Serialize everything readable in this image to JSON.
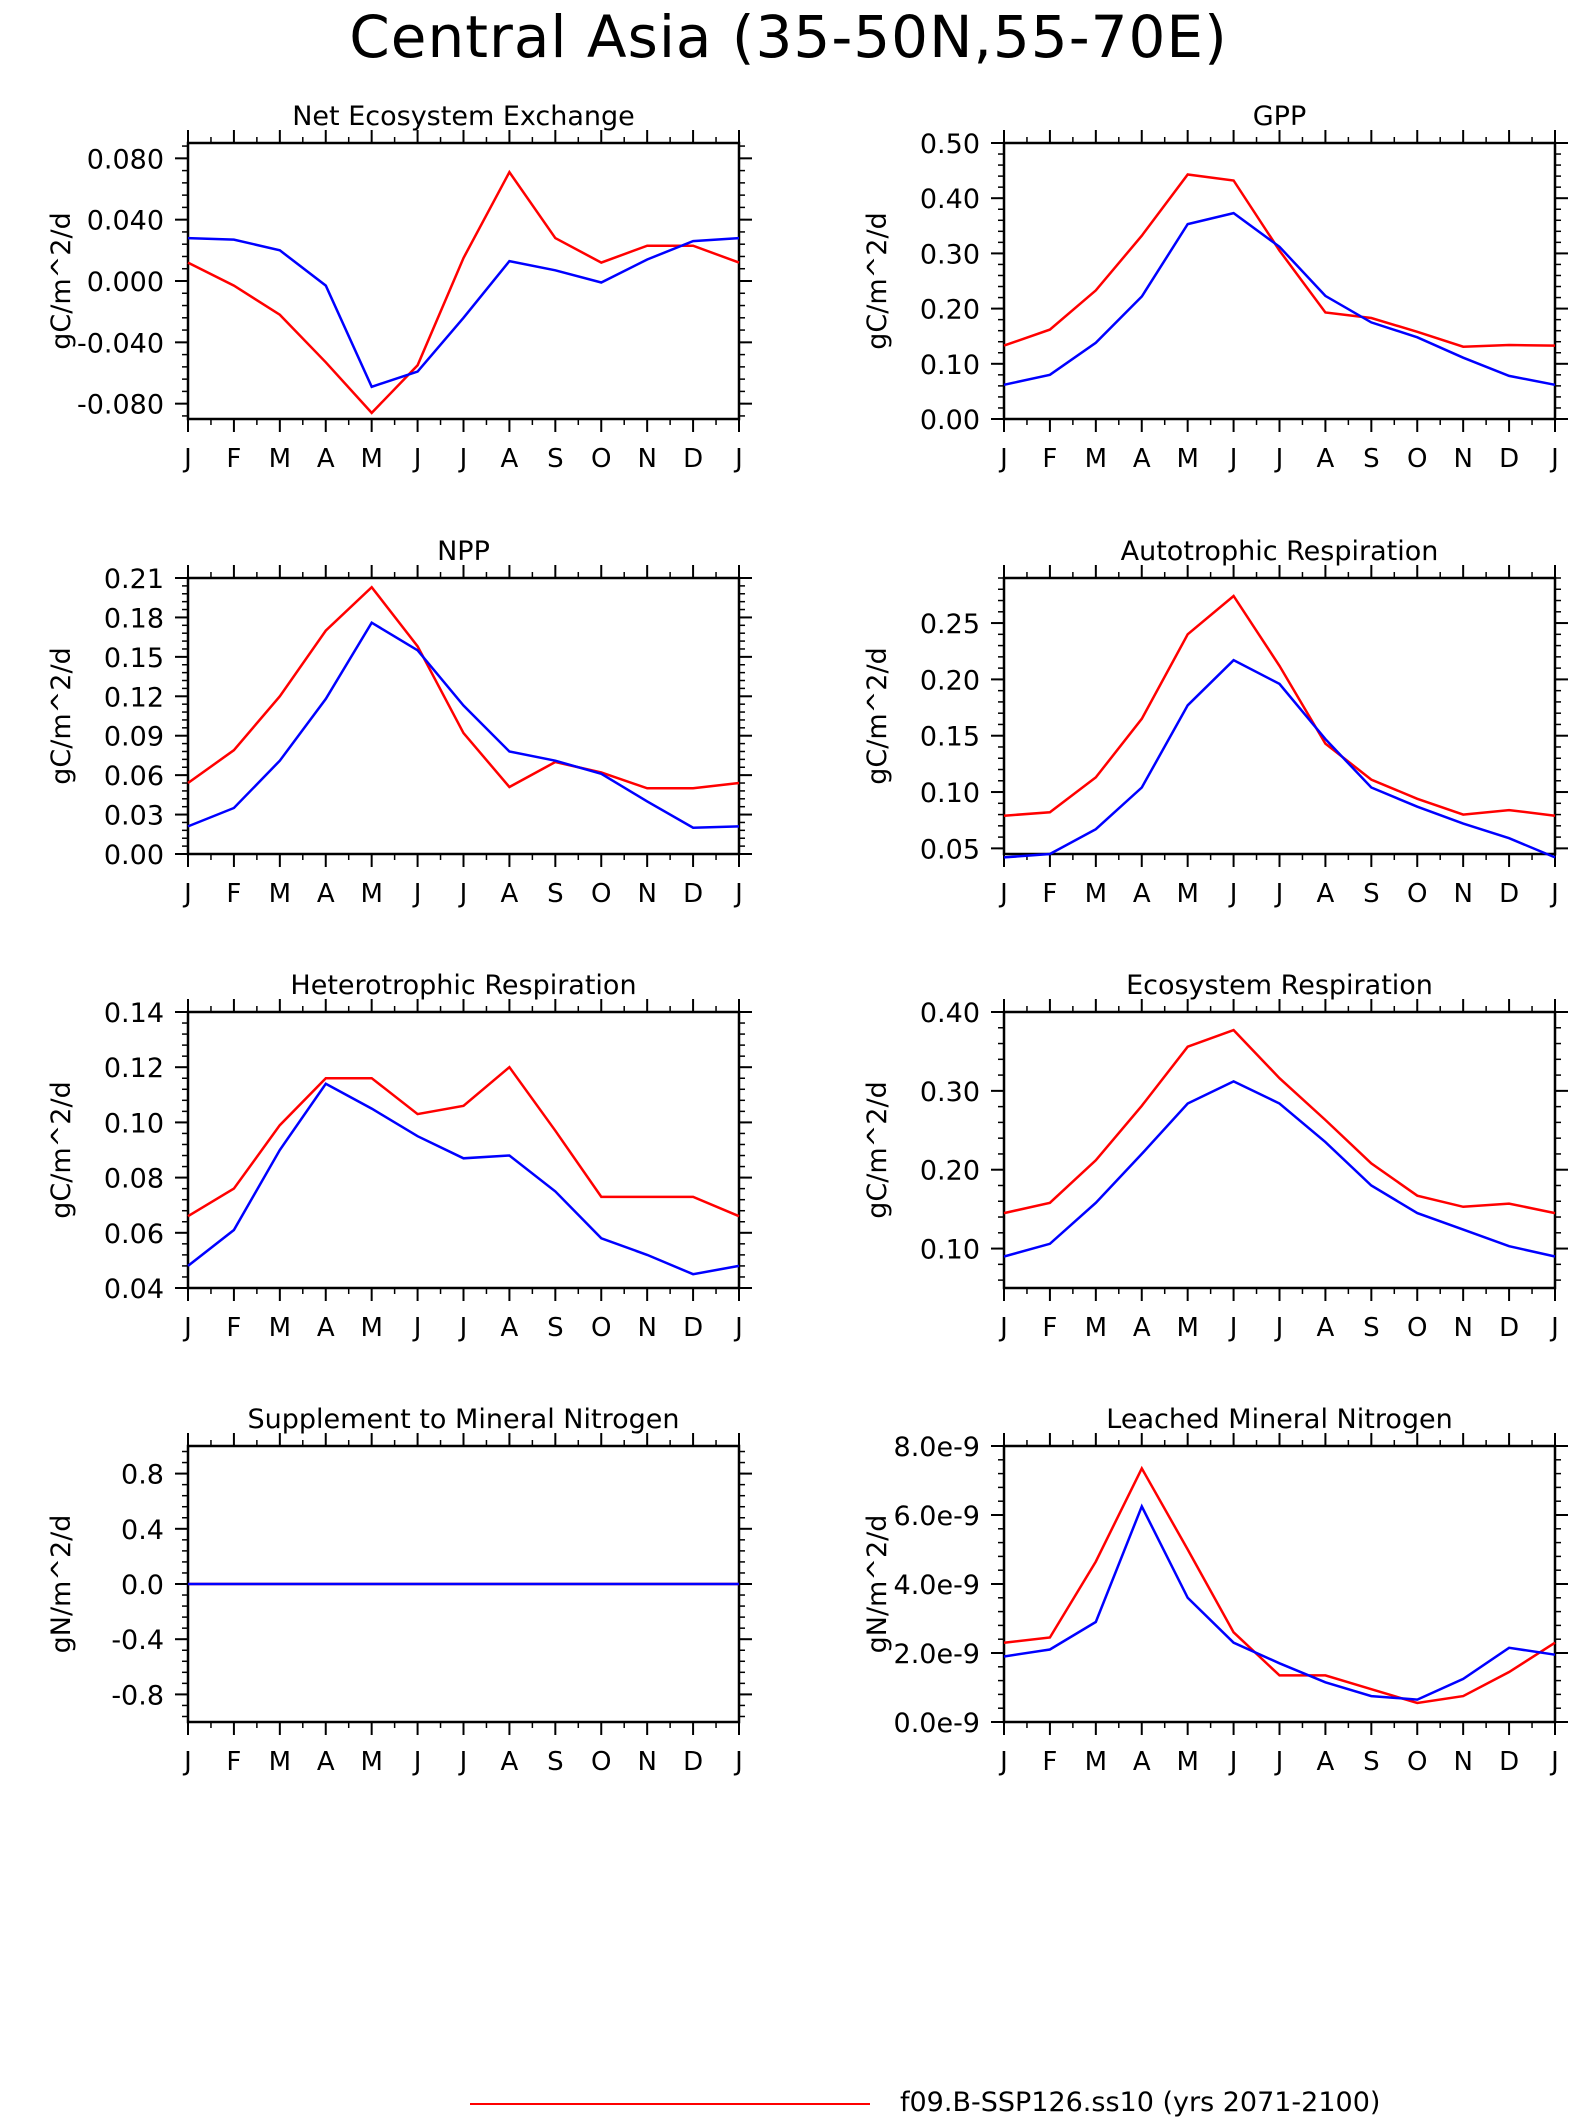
{
  "title": "Central Asia (35-50N,55-70E)",
  "legend": {
    "series_label": "f09.B-SSP126.ss10 (yrs 2071-2100)",
    "series_color": "#ff0000",
    "second_series_color": "#0000ff"
  },
  "chart_data": [
    {
      "type": "line",
      "title": "Net Ecosystem Exchange",
      "ylabel": "gC/m^2/d",
      "categories": [
        "J",
        "F",
        "M",
        "A",
        "M",
        "J",
        "J",
        "A",
        "S",
        "O",
        "N",
        "D",
        "J"
      ],
      "ylim": [
        -0.09,
        0.09
      ],
      "yticks": [
        -0.08,
        -0.04,
        0.0,
        0.04,
        0.08
      ],
      "ytick_labels": [
        "-0.080",
        "-0.040",
        "0.000",
        "0.040",
        "0.080"
      ],
      "series": [
        {
          "color": "#ff0000",
          "values": [
            0.012,
            -0.003,
            -0.022,
            -0.053,
            -0.086,
            -0.055,
            0.015,
            0.071,
            0.028,
            0.012,
            0.023,
            0.023,
            0.012
          ]
        },
        {
          "color": "#0000ff",
          "values": [
            0.028,
            0.027,
            0.02,
            -0.003,
            -0.069,
            -0.059,
            -0.024,
            0.013,
            0.007,
            -0.001,
            0.014,
            0.026,
            0.028
          ]
        }
      ]
    },
    {
      "type": "line",
      "title": "GPP",
      "ylabel": "gC/m^2/d",
      "categories": [
        "J",
        "F",
        "M",
        "A",
        "M",
        "J",
        "J",
        "A",
        "S",
        "O",
        "N",
        "D",
        "J"
      ],
      "ylim": [
        0.0,
        0.5
      ],
      "yticks": [
        0.0,
        0.1,
        0.2,
        0.3,
        0.4,
        0.5
      ],
      "ytick_labels": [
        "0.00",
        "0.10",
        "0.20",
        "0.30",
        "0.40",
        "0.50"
      ],
      "series": [
        {
          "color": "#ff0000",
          "values": [
            0.133,
            0.162,
            0.233,
            0.332,
            0.443,
            0.432,
            0.305,
            0.193,
            0.183,
            0.158,
            0.131,
            0.134,
            0.133
          ]
        },
        {
          "color": "#0000ff",
          "values": [
            0.062,
            0.08,
            0.138,
            0.222,
            0.353,
            0.373,
            0.312,
            0.223,
            0.175,
            0.148,
            0.111,
            0.078,
            0.062
          ]
        }
      ]
    },
    {
      "type": "line",
      "title": "NPP",
      "ylabel": "gC/m^2/d",
      "categories": [
        "J",
        "F",
        "M",
        "A",
        "M",
        "J",
        "J",
        "A",
        "S",
        "O",
        "N",
        "D",
        "J"
      ],
      "ylim": [
        0.0,
        0.21
      ],
      "yticks": [
        0.0,
        0.03,
        0.06,
        0.09,
        0.12,
        0.15,
        0.18,
        0.21
      ],
      "ytick_labels": [
        "0.00",
        "0.03",
        "0.06",
        "0.09",
        "0.12",
        "0.15",
        "0.18",
        "0.21"
      ],
      "series": [
        {
          "color": "#ff0000",
          "values": [
            0.054,
            0.079,
            0.12,
            0.17,
            0.203,
            0.158,
            0.092,
            0.051,
            0.07,
            0.062,
            0.05,
            0.05,
            0.054
          ]
        },
        {
          "color": "#0000ff",
          "values": [
            0.021,
            0.035,
            0.071,
            0.118,
            0.176,
            0.155,
            0.113,
            0.078,
            0.071,
            0.061,
            0.04,
            0.02,
            0.021
          ]
        }
      ]
    },
    {
      "type": "line",
      "title": "Autotrophic Respiration",
      "ylabel": "gC/m^2/d",
      "categories": [
        "J",
        "F",
        "M",
        "A",
        "M",
        "J",
        "J",
        "A",
        "S",
        "O",
        "N",
        "D",
        "J"
      ],
      "ylim": [
        0.045,
        0.29
      ],
      "yticks": [
        0.05,
        0.1,
        0.15,
        0.2,
        0.25
      ],
      "ytick_labels": [
        "0.05",
        "0.10",
        "0.15",
        "0.20",
        "0.25"
      ],
      "series": [
        {
          "color": "#ff0000",
          "values": [
            0.079,
            0.082,
            0.113,
            0.165,
            0.24,
            0.274,
            0.212,
            0.143,
            0.111,
            0.094,
            0.08,
            0.084,
            0.079
          ]
        },
        {
          "color": "#0000ff",
          "values": [
            0.042,
            0.045,
            0.067,
            0.104,
            0.177,
            0.217,
            0.196,
            0.147,
            0.104,
            0.087,
            0.072,
            0.059,
            0.042
          ]
        }
      ]
    },
    {
      "type": "line",
      "title": "Heterotrophic Respiration",
      "ylabel": "gC/m^2/d",
      "categories": [
        "J",
        "F",
        "M",
        "A",
        "M",
        "J",
        "J",
        "A",
        "S",
        "O",
        "N",
        "D",
        "J"
      ],
      "ylim": [
        0.04,
        0.14
      ],
      "yticks": [
        0.04,
        0.06,
        0.08,
        0.1,
        0.12,
        0.14
      ],
      "ytick_labels": [
        "0.04",
        "0.06",
        "0.08",
        "0.10",
        "0.12",
        "0.14"
      ],
      "series": [
        {
          "color": "#ff0000",
          "values": [
            0.066,
            0.076,
            0.099,
            0.116,
            0.116,
            0.103,
            0.106,
            0.12,
            0.097,
            0.073,
            0.073,
            0.073,
            0.066
          ]
        },
        {
          "color": "#0000ff",
          "values": [
            0.048,
            0.061,
            0.09,
            0.114,
            0.105,
            0.095,
            0.087,
            0.088,
            0.075,
            0.058,
            0.052,
            0.045,
            0.048
          ]
        }
      ]
    },
    {
      "type": "line",
      "title": "Ecosystem Respiration",
      "ylabel": "gC/m^2/d",
      "categories": [
        "J",
        "F",
        "M",
        "A",
        "M",
        "J",
        "J",
        "A",
        "S",
        "O",
        "N",
        "D",
        "J"
      ],
      "ylim": [
        0.05,
        0.4
      ],
      "yticks": [
        0.1,
        0.2,
        0.3,
        0.4
      ],
      "ytick_labels": [
        "0.10",
        "0.20",
        "0.30",
        "0.40"
      ],
      "series": [
        {
          "color": "#ff0000",
          "values": [
            0.145,
            0.158,
            0.212,
            0.281,
            0.356,
            0.377,
            0.316,
            0.263,
            0.208,
            0.167,
            0.153,
            0.157,
            0.145
          ]
        },
        {
          "color": "#0000ff",
          "values": [
            0.09,
            0.106,
            0.158,
            0.22,
            0.284,
            0.312,
            0.284,
            0.235,
            0.18,
            0.145,
            0.124,
            0.103,
            0.09
          ]
        }
      ]
    },
    {
      "type": "line",
      "title": "Supplement to Mineral Nitrogen",
      "ylabel": "gN/m^2/d",
      "categories": [
        "J",
        "F",
        "M",
        "A",
        "M",
        "J",
        "J",
        "A",
        "S",
        "O",
        "N",
        "D",
        "J"
      ],
      "ylim": [
        -1.0,
        1.0
      ],
      "yticks": [
        -0.8,
        -0.4,
        0.0,
        0.4,
        0.8
      ],
      "ytick_labels": [
        "-0.8",
        "-0.4",
        "0.0",
        "0.4",
        "0.8"
      ],
      "series": [
        {
          "color": "#ff0000",
          "values": [
            0,
            0,
            0,
            0,
            0,
            0,
            0,
            0,
            0,
            0,
            0,
            0,
            0
          ]
        },
        {
          "color": "#0000ff",
          "values": [
            0,
            0,
            0,
            0,
            0,
            0,
            0,
            0,
            0,
            0,
            0,
            0,
            0
          ]
        }
      ]
    },
    {
      "type": "line",
      "title": "Leached Mineral Nitrogen",
      "ylabel": "gN/m^2/d",
      "categories": [
        "J",
        "F",
        "M",
        "A",
        "M",
        "J",
        "J",
        "A",
        "S",
        "O",
        "N",
        "D",
        "J"
      ],
      "ylim": [
        0.0,
        8e-09
      ],
      "yticks": [
        0.0,
        2e-09,
        4e-09,
        6e-09,
        8e-09
      ],
      "ytick_labels": [
        "0.0e-9",
        "2.0e-9",
        "4.0e-9",
        "6.0e-9",
        "8.0e-9"
      ],
      "series": [
        {
          "color": "#ff0000",
          "values": [
            2.3e-09,
            2.45e-09,
            4.65e-09,
            7.35e-09,
            5e-09,
            2.6e-09,
            1.35e-09,
            1.35e-09,
            9.5e-10,
            5.5e-10,
            7.5e-10,
            1.45e-09,
            2.3e-09
          ]
        },
        {
          "color": "#0000ff",
          "values": [
            1.9e-09,
            2.1e-09,
            2.9e-09,
            6.25e-09,
            3.6e-09,
            2.3e-09,
            1.7e-09,
            1.15e-09,
            7.5e-10,
            6.5e-10,
            1.25e-09,
            2.15e-09,
            1.95e-09
          ]
        }
      ]
    }
  ]
}
